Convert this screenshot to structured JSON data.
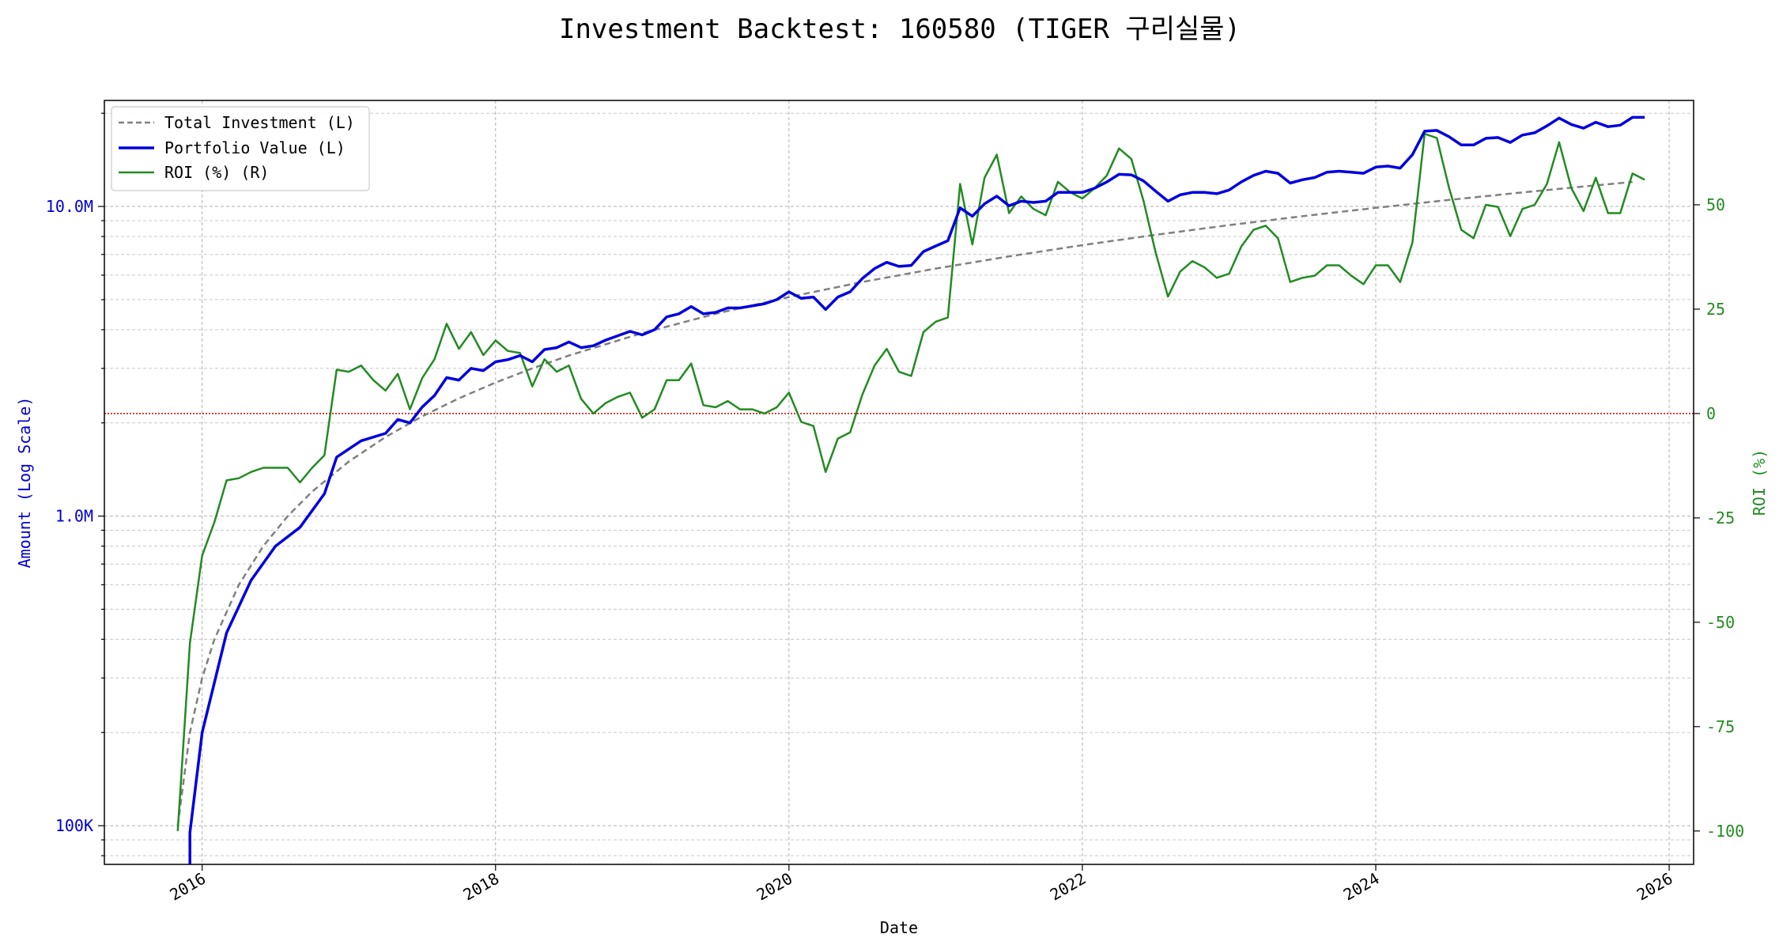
{
  "chart_data": {
    "type": "line",
    "title": "Investment Backtest: 160580 (TIGER 구리실물)",
    "xlabel": "Date",
    "ylabel_left": "Amount (Log Scale)",
    "ylabel_right": "ROI (%)",
    "y_left_scale": "log",
    "y_left_range": [
      75000,
      22000000
    ],
    "y_right_range": [
      -108,
      75
    ],
    "x_range": [
      "2015-05",
      "2026-03"
    ],
    "grid": true,
    "legend_position": "top-left",
    "x_ticks": [
      "2016",
      "2018",
      "2020",
      "2022",
      "2024",
      "2026"
    ],
    "y_left_ticks": [
      {
        "value": 100000,
        "label": "100K"
      },
      {
        "value": 1000000,
        "label": "1.0M"
      },
      {
        "value": 10000000,
        "label": "10.0M"
      }
    ],
    "y_right_ticks": [
      -100,
      -75,
      -50,
      -25,
      0,
      25,
      50
    ],
    "reference_line": {
      "axis": "right",
      "value": 0,
      "color": "#cc0000",
      "style": "dotted"
    },
    "series": [
      {
        "name": "Total Investment (L)",
        "axis": "left",
        "color": "#808080",
        "style": "dashed",
        "points": [
          [
            "2015-11",
            100000
          ],
          [
            "2015-12",
            200000
          ],
          [
            "2016-01",
            300000
          ],
          [
            "2016-02",
            400000
          ],
          [
            "2016-04",
            600000
          ],
          [
            "2016-06",
            800000
          ],
          [
            "2016-08",
            1000000
          ],
          [
            "2016-10",
            1200000
          ],
          [
            "2017-01",
            1500000
          ],
          [
            "2017-04",
            1800000
          ],
          [
            "2017-07",
            2100000
          ],
          [
            "2017-10",
            2400000
          ],
          [
            "2018-01",
            2700000
          ],
          [
            "2018-04",
            3000000
          ],
          [
            "2018-07",
            3300000
          ],
          [
            "2019-01",
            3900000
          ],
          [
            "2019-07",
            4500000
          ],
          [
            "2020-01",
            5100000
          ],
          [
            "2020-07",
            5700000
          ],
          [
            "2021-01",
            6300000
          ],
          [
            "2021-07",
            6900000
          ],
          [
            "2022-01",
            7500000
          ],
          [
            "2022-07",
            8100000
          ],
          [
            "2023-01",
            8700000
          ],
          [
            "2023-07",
            9300000
          ],
          [
            "2024-01",
            9900000
          ],
          [
            "2024-07",
            10500000
          ],
          [
            "2025-01",
            11100000
          ],
          [
            "2025-07",
            11700000
          ],
          [
            "2025-10",
            12000000
          ]
        ]
      },
      {
        "name": "Portfolio Value (L)",
        "axis": "left",
        "color": "#0000dd",
        "style": "solid",
        "points": [
          [
            "2015-12",
            75000
          ],
          [
            "2015-12",
            95000
          ],
          [
            "2016-01",
            200000
          ],
          [
            "2016-03",
            420000
          ],
          [
            "2016-05",
            620000
          ],
          [
            "2016-07",
            800000
          ],
          [
            "2016-09",
            920000
          ],
          [
            "2016-11",
            1180000
          ],
          [
            "2016-12",
            1550000
          ],
          [
            "2017-02",
            1750000
          ],
          [
            "2017-04",
            1850000
          ],
          [
            "2017-05",
            2050000
          ],
          [
            "2017-06",
            2000000
          ],
          [
            "2017-07",
            2250000
          ],
          [
            "2017-08",
            2450000
          ],
          [
            "2017-09",
            2800000
          ],
          [
            "2017-10",
            2750000
          ],
          [
            "2017-11",
            3000000
          ],
          [
            "2017-12",
            2950000
          ],
          [
            "2018-01",
            3150000
          ],
          [
            "2018-02",
            3200000
          ],
          [
            "2018-03",
            3300000
          ],
          [
            "2018-04",
            3150000
          ],
          [
            "2018-05",
            3450000
          ],
          [
            "2018-06",
            3500000
          ],
          [
            "2018-07",
            3650000
          ],
          [
            "2018-08",
            3500000
          ],
          [
            "2018-09",
            3550000
          ],
          [
            "2018-10",
            3700000
          ],
          [
            "2018-12",
            3950000
          ],
          [
            "2019-01",
            3850000
          ],
          [
            "2019-02",
            4000000
          ],
          [
            "2019-03",
            4400000
          ],
          [
            "2019-04",
            4500000
          ],
          [
            "2019-05",
            4750000
          ],
          [
            "2019-06",
            4500000
          ],
          [
            "2019-07",
            4550000
          ],
          [
            "2019-08",
            4700000
          ],
          [
            "2019-09",
            4700000
          ],
          [
            "2019-11",
            4850000
          ],
          [
            "2019-12",
            5000000
          ],
          [
            "2020-01",
            5300000
          ],
          [
            "2020-02",
            5050000
          ],
          [
            "2020-03",
            5100000
          ],
          [
            "2020-04",
            4650000
          ],
          [
            "2020-05",
            5100000
          ],
          [
            "2020-06",
            5300000
          ],
          [
            "2020-07",
            5850000
          ],
          [
            "2020-08",
            6300000
          ],
          [
            "2020-09",
            6600000
          ],
          [
            "2020-10",
            6400000
          ],
          [
            "2020-11",
            6450000
          ],
          [
            "2020-12",
            7150000
          ],
          [
            "2021-01",
            7450000
          ],
          [
            "2021-02",
            7750000
          ],
          [
            "2021-03",
            9900000
          ],
          [
            "2021-04",
            9300000
          ],
          [
            "2021-05",
            10200000
          ],
          [
            "2021-06",
            10800000
          ],
          [
            "2021-07",
            10050000
          ],
          [
            "2021-08",
            10400000
          ],
          [
            "2021-09",
            10300000
          ],
          [
            "2021-10",
            10400000
          ],
          [
            "2021-11",
            11100000
          ],
          [
            "2022-01",
            11100000
          ],
          [
            "2022-02",
            11450000
          ],
          [
            "2022-03",
            12000000
          ],
          [
            "2022-04",
            12700000
          ],
          [
            "2022-05",
            12650000
          ],
          [
            "2022-06",
            12100000
          ],
          [
            "2022-07",
            11200000
          ],
          [
            "2022-08",
            10400000
          ],
          [
            "2022-09",
            10900000
          ],
          [
            "2022-10",
            11100000
          ],
          [
            "2022-11",
            11100000
          ],
          [
            "2022-12",
            11000000
          ],
          [
            "2023-01",
            11300000
          ],
          [
            "2023-02",
            12000000
          ],
          [
            "2023-03",
            12600000
          ],
          [
            "2023-04",
            13000000
          ],
          [
            "2023-05",
            12800000
          ],
          [
            "2023-06",
            11900000
          ],
          [
            "2023-07",
            12200000
          ],
          [
            "2023-08",
            12400000
          ],
          [
            "2023-09",
            12900000
          ],
          [
            "2023-10",
            13000000
          ],
          [
            "2023-11",
            12900000
          ],
          [
            "2023-12",
            12800000
          ],
          [
            "2024-01",
            13400000
          ],
          [
            "2024-02",
            13500000
          ],
          [
            "2024-03",
            13300000
          ],
          [
            "2024-04",
            14700000
          ],
          [
            "2024-05",
            17500000
          ],
          [
            "2024-06",
            17600000
          ],
          [
            "2024-07",
            16800000
          ],
          [
            "2024-08",
            15800000
          ],
          [
            "2024-09",
            15800000
          ],
          [
            "2024-10",
            16600000
          ],
          [
            "2024-11",
            16700000
          ],
          [
            "2024-12",
            16100000
          ],
          [
            "2025-01",
            17000000
          ],
          [
            "2025-02",
            17300000
          ],
          [
            "2025-03",
            18200000
          ],
          [
            "2025-04",
            19300000
          ],
          [
            "2025-05",
            18400000
          ],
          [
            "2025-06",
            17900000
          ],
          [
            "2025-07",
            18700000
          ],
          [
            "2025-08",
            18100000
          ],
          [
            "2025-09",
            18300000
          ],
          [
            "2025-10",
            19400000
          ],
          [
            "2025-11",
            19400000
          ]
        ]
      },
      {
        "name": "ROI (%) (R)",
        "axis": "right",
        "color": "#228b22",
        "style": "solid",
        "points": [
          [
            "2015-11",
            -100
          ],
          [
            "2015-12",
            -55
          ],
          [
            "2016-01",
            -34
          ],
          [
            "2016-02",
            -26
          ],
          [
            "2016-03",
            -16
          ],
          [
            "2016-04",
            -15.5
          ],
          [
            "2016-05",
            -14
          ],
          [
            "2016-06",
            -13
          ],
          [
            "2016-07",
            -13
          ],
          [
            "2016-08",
            -13
          ],
          [
            "2016-09",
            -16.5
          ],
          [
            "2016-10",
            -13
          ],
          [
            "2016-11",
            -10
          ],
          [
            "2016-12",
            10.5
          ],
          [
            "2017-01",
            10
          ],
          [
            "2017-02",
            11.5
          ],
          [
            "2017-03",
            8
          ],
          [
            "2017-04",
            5.5
          ],
          [
            "2017-05",
            9.5
          ],
          [
            "2017-06",
            1
          ],
          [
            "2017-07",
            8.5
          ],
          [
            "2017-08",
            13
          ],
          [
            "2017-09",
            21.5
          ],
          [
            "2017-10",
            15.5
          ],
          [
            "2017-11",
            19.5
          ],
          [
            "2017-12",
            14
          ],
          [
            "2018-01",
            17.5
          ],
          [
            "2018-02",
            15
          ],
          [
            "2018-03",
            14.5
          ],
          [
            "2018-04",
            6.5
          ],
          [
            "2018-05",
            13
          ],
          [
            "2018-06",
            10
          ],
          [
            "2018-07",
            11.5
          ],
          [
            "2018-08",
            3.5
          ],
          [
            "2018-09",
            0
          ],
          [
            "2018-10",
            2.5
          ],
          [
            "2018-11",
            4
          ],
          [
            "2018-12",
            5
          ],
          [
            "2019-01",
            -1
          ],
          [
            "2019-02",
            1
          ],
          [
            "2019-03",
            8
          ],
          [
            "2019-04",
            8
          ],
          [
            "2019-05",
            12
          ],
          [
            "2019-06",
            2
          ],
          [
            "2019-07",
            1.5
          ],
          [
            "2019-08",
            3
          ],
          [
            "2019-09",
            1
          ],
          [
            "2019-10",
            1
          ],
          [
            "2019-11",
            0
          ],
          [
            "2019-12",
            1.5
          ],
          [
            "2020-01",
            5
          ],
          [
            "2020-02",
            -2
          ],
          [
            "2020-03",
            -3
          ],
          [
            "2020-04",
            -14
          ],
          [
            "2020-05",
            -6
          ],
          [
            "2020-06",
            -4.5
          ],
          [
            "2020-07",
            4.5
          ],
          [
            "2020-08",
            11.5
          ],
          [
            "2020-09",
            15.5
          ],
          [
            "2020-10",
            10
          ],
          [
            "2020-11",
            9
          ],
          [
            "2020-12",
            19.5
          ],
          [
            "2021-01",
            22
          ],
          [
            "2021-02",
            23
          ],
          [
            "2021-03",
            55
          ],
          [
            "2021-04",
            40.5
          ],
          [
            "2021-05",
            56.5
          ],
          [
            "2021-06",
            62
          ],
          [
            "2021-07",
            48
          ],
          [
            "2021-08",
            52
          ],
          [
            "2021-09",
            49
          ],
          [
            "2021-10",
            47.5
          ],
          [
            "2021-11",
            55.5
          ],
          [
            "2021-12",
            53
          ],
          [
            "2022-01",
            51.5
          ],
          [
            "2022-02",
            54
          ],
          [
            "2022-03",
            57
          ],
          [
            "2022-04",
            63.5
          ],
          [
            "2022-05",
            61
          ],
          [
            "2022-06",
            51
          ],
          [
            "2022-07",
            38.5
          ],
          [
            "2022-08",
            28
          ],
          [
            "2022-09",
            34
          ],
          [
            "2022-10",
            36.5
          ],
          [
            "2022-11",
            35
          ],
          [
            "2022-12",
            32.5
          ],
          [
            "2023-01",
            33.5
          ],
          [
            "2023-02",
            40
          ],
          [
            "2023-03",
            44
          ],
          [
            "2023-04",
            45
          ],
          [
            "2023-05",
            42
          ],
          [
            "2023-06",
            31.5
          ],
          [
            "2023-07",
            32.5
          ],
          [
            "2023-08",
            33
          ],
          [
            "2023-09",
            35.5
          ],
          [
            "2023-10",
            35.5
          ],
          [
            "2023-11",
            33
          ],
          [
            "2023-12",
            31
          ],
          [
            "2024-01",
            35.5
          ],
          [
            "2024-02",
            35.5
          ],
          [
            "2024-03",
            31.5
          ],
          [
            "2024-04",
            41
          ],
          [
            "2024-05",
            67
          ],
          [
            "2024-06",
            66
          ],
          [
            "2024-07",
            54
          ],
          [
            "2024-08",
            44
          ],
          [
            "2024-09",
            42
          ],
          [
            "2024-10",
            50
          ],
          [
            "2024-11",
            49.5
          ],
          [
            "2024-12",
            42.5
          ],
          [
            "2025-01",
            49
          ],
          [
            "2025-02",
            50
          ],
          [
            "2025-03",
            55
          ],
          [
            "2025-04",
            65
          ],
          [
            "2025-05",
            54
          ],
          [
            "2025-06",
            48.5
          ],
          [
            "2025-07",
            56.5
          ],
          [
            "2025-08",
            48
          ],
          [
            "2025-09",
            48
          ],
          [
            "2025-10",
            57.5
          ],
          [
            "2025-11",
            56
          ]
        ]
      }
    ]
  }
}
